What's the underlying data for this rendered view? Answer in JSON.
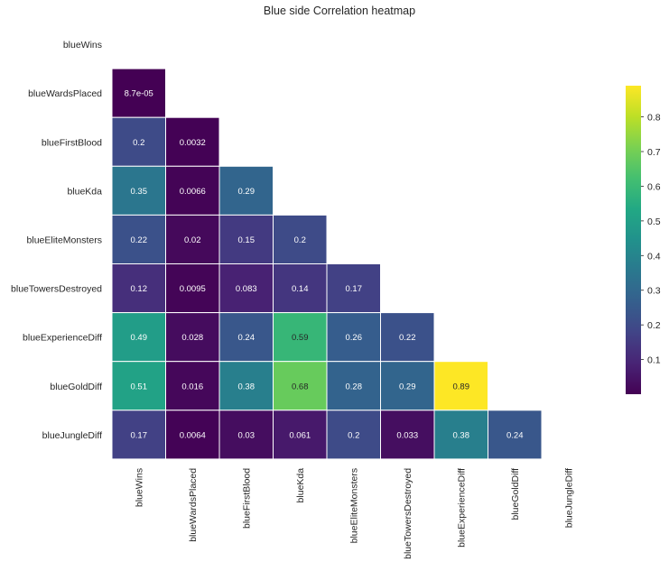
{
  "chart_data": {
    "type": "heatmap",
    "title": "Blue side Correlation heatmap",
    "xlabel": "",
    "ylabel": "",
    "labels": [
      "blueWins",
      "blueWardsPlaced",
      "blueFirstBlood",
      "blueKda",
      "blueEliteMonsters",
      "blueTowersDestroyed",
      "blueExperienceDiff",
      "blueGoldDiff",
      "blueJungleDiff"
    ],
    "mask": "upper-triangle",
    "cells": [
      {
        "row": 1,
        "col": 0,
        "value": 8.7e-05,
        "label": "8.7e-05"
      },
      {
        "row": 2,
        "col": 0,
        "value": 0.2,
        "label": "0.2"
      },
      {
        "row": 2,
        "col": 1,
        "value": 0.0032,
        "label": "0.0032"
      },
      {
        "row": 3,
        "col": 0,
        "value": 0.35,
        "label": "0.35"
      },
      {
        "row": 3,
        "col": 1,
        "value": 0.0066,
        "label": "0.0066"
      },
      {
        "row": 3,
        "col": 2,
        "value": 0.29,
        "label": "0.29"
      },
      {
        "row": 4,
        "col": 0,
        "value": 0.22,
        "label": "0.22"
      },
      {
        "row": 4,
        "col": 1,
        "value": 0.02,
        "label": "0.02"
      },
      {
        "row": 4,
        "col": 2,
        "value": 0.15,
        "label": "0.15"
      },
      {
        "row": 4,
        "col": 3,
        "value": 0.2,
        "label": "0.2"
      },
      {
        "row": 5,
        "col": 0,
        "value": 0.12,
        "label": "0.12"
      },
      {
        "row": 5,
        "col": 1,
        "value": 0.0095,
        "label": "0.0095"
      },
      {
        "row": 5,
        "col": 2,
        "value": 0.083,
        "label": "0.083"
      },
      {
        "row": 5,
        "col": 3,
        "value": 0.14,
        "label": "0.14"
      },
      {
        "row": 5,
        "col": 4,
        "value": 0.17,
        "label": "0.17"
      },
      {
        "row": 6,
        "col": 0,
        "value": 0.49,
        "label": "0.49"
      },
      {
        "row": 6,
        "col": 1,
        "value": 0.028,
        "label": "0.028"
      },
      {
        "row": 6,
        "col": 2,
        "value": 0.24,
        "label": "0.24"
      },
      {
        "row": 6,
        "col": 3,
        "value": 0.59,
        "label": "0.59"
      },
      {
        "row": 6,
        "col": 4,
        "value": 0.26,
        "label": "0.26"
      },
      {
        "row": 6,
        "col": 5,
        "value": 0.22,
        "label": "0.22"
      },
      {
        "row": 7,
        "col": 0,
        "value": 0.51,
        "label": "0.51"
      },
      {
        "row": 7,
        "col": 1,
        "value": 0.016,
        "label": "0.016"
      },
      {
        "row": 7,
        "col": 2,
        "value": 0.38,
        "label": "0.38"
      },
      {
        "row": 7,
        "col": 3,
        "value": 0.68,
        "label": "0.68"
      },
      {
        "row": 7,
        "col": 4,
        "value": 0.28,
        "label": "0.28"
      },
      {
        "row": 7,
        "col": 5,
        "value": 0.29,
        "label": "0.29"
      },
      {
        "row": 7,
        "col": 6,
        "value": 0.89,
        "label": "0.89"
      },
      {
        "row": 8,
        "col": 0,
        "value": 0.17,
        "label": "0.17"
      },
      {
        "row": 8,
        "col": 1,
        "value": 0.0064,
        "label": "0.0064"
      },
      {
        "row": 8,
        "col": 2,
        "value": 0.03,
        "label": "0.03"
      },
      {
        "row": 8,
        "col": 3,
        "value": 0.061,
        "label": "0.061"
      },
      {
        "row": 8,
        "col": 4,
        "value": 0.2,
        "label": "0.2"
      },
      {
        "row": 8,
        "col": 5,
        "value": 0.033,
        "label": "0.033"
      },
      {
        "row": 8,
        "col": 6,
        "value": 0.38,
        "label": "0.38"
      },
      {
        "row": 8,
        "col": 7,
        "value": 0.24,
        "label": "0.24"
      }
    ],
    "colormap": "viridis",
    "vmin": 8.7e-05,
    "vmax": 0.89,
    "colorbar_ticks": [
      "0.1",
      "0.2",
      "0.3",
      "0.4",
      "0.5",
      "0.6",
      "0.7",
      "0.8"
    ],
    "colorbar_tick_values": [
      0.1,
      0.2,
      0.3,
      0.4,
      0.5,
      0.6,
      0.7,
      0.8
    ],
    "grid": true,
    "colors": {
      "background": "#ffffff",
      "cell_border": "#ffffff",
      "text": "#262626",
      "annotation_light": "#ffffff",
      "annotation_dark": "#262626"
    }
  }
}
